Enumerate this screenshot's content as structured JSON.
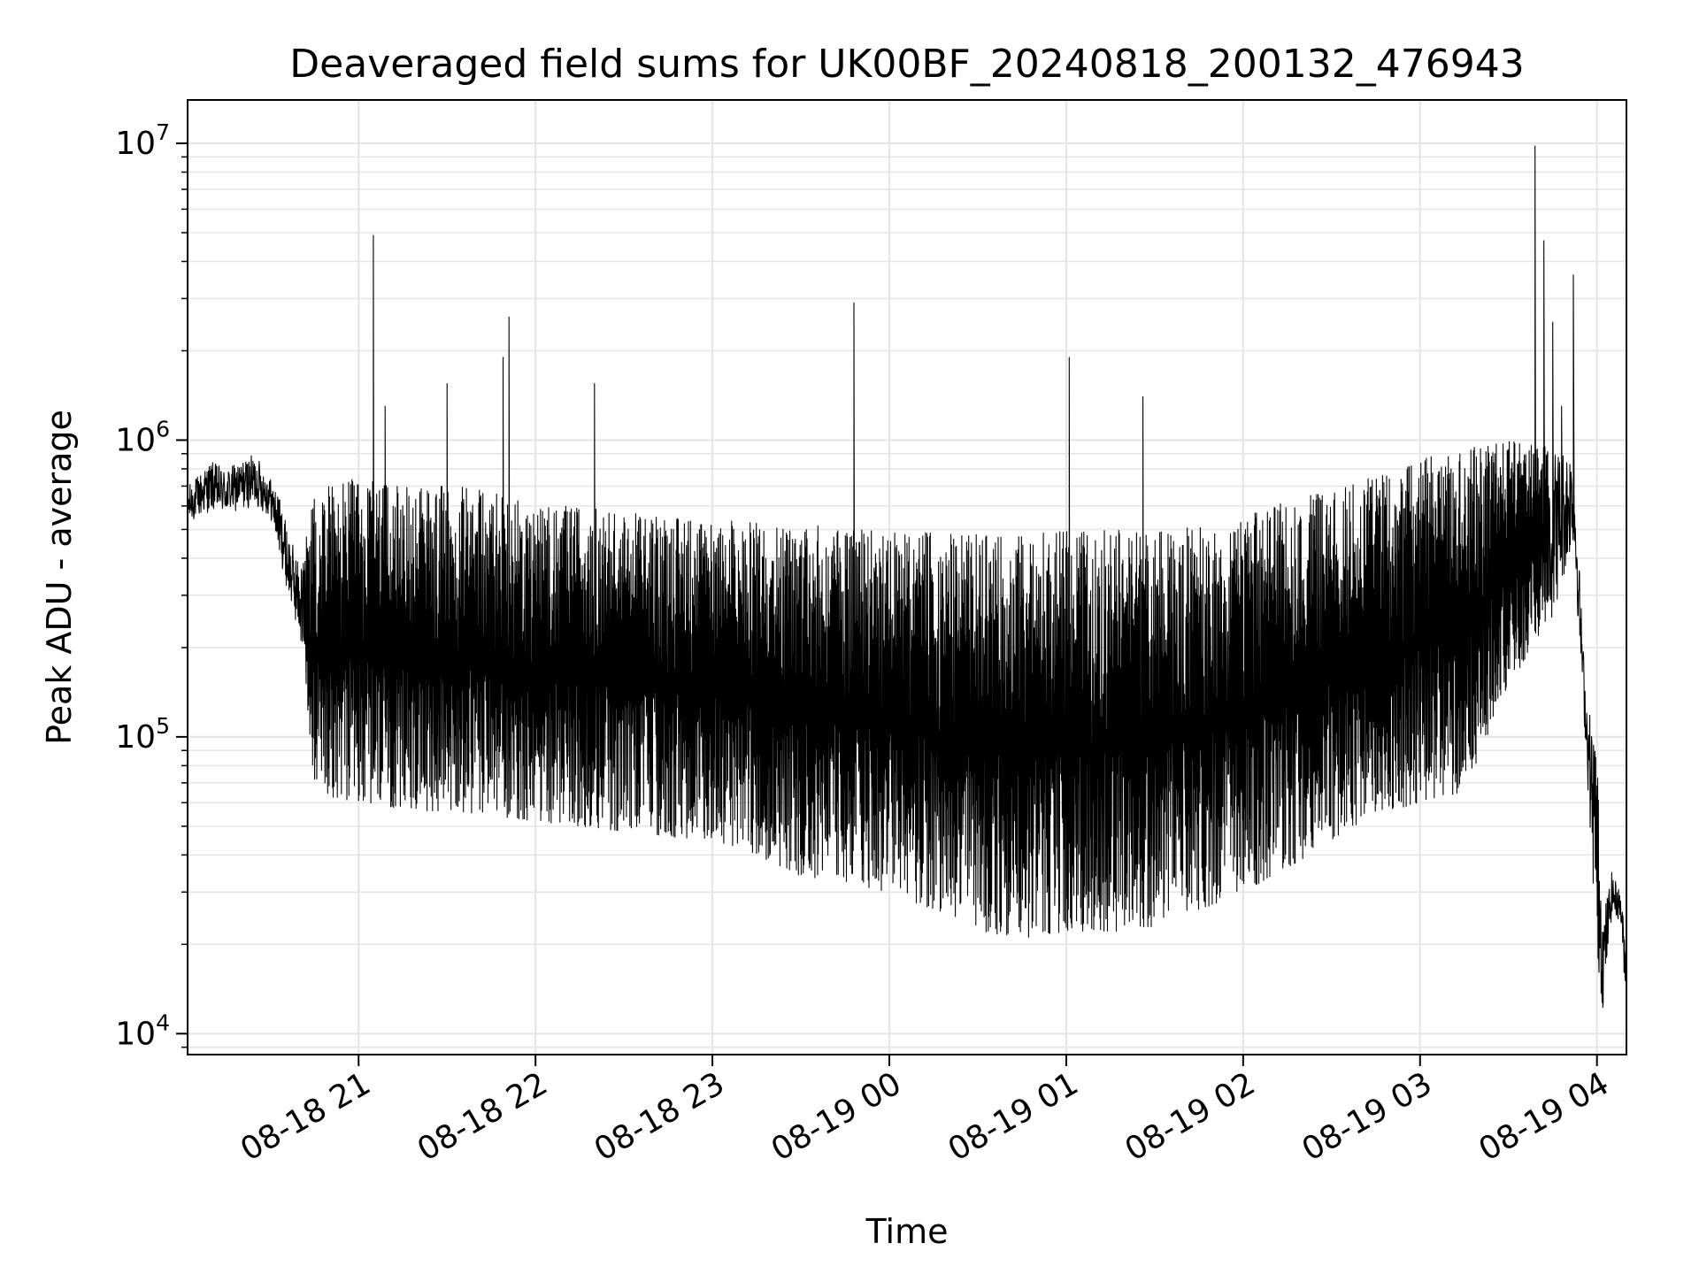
{
  "chart_data": {
    "type": "line",
    "title": "Deaveraged field sums for UK00BF_20240818_200132_476943",
    "xlabel": "Time",
    "ylabel": "Peak ADU - average",
    "yscale": "log",
    "ylim": [
      8500,
      14000000
    ],
    "xlim": [
      "2024-08-18 20:02:00",
      "2024-08-19 04:10:00"
    ],
    "x_ticks": [
      {
        "time": "2024-08-18 21:00",
        "label": "08-18 21"
      },
      {
        "time": "2024-08-18 22:00",
        "label": "08-18 22"
      },
      {
        "time": "2024-08-18 23:00",
        "label": "08-18 23"
      },
      {
        "time": "2024-08-19 00:00",
        "label": "08-19 00"
      },
      {
        "time": "2024-08-19 01:00",
        "label": "08-19 01"
      },
      {
        "time": "2024-08-19 02:00",
        "label": "08-19 02"
      },
      {
        "time": "2024-08-19 03:00",
        "label": "08-19 03"
      },
      {
        "time": "2024-08-19 04:00",
        "label": "08-19 04"
      }
    ],
    "y_ticks": [
      {
        "value": 10000,
        "base": "10",
        "exp": "4"
      },
      {
        "value": 100000,
        "base": "10",
        "exp": "5"
      },
      {
        "value": 1000000,
        "base": "10",
        "exp": "6"
      },
      {
        "value": 10000000,
        "base": "10",
        "exp": "7"
      }
    ],
    "grid": true,
    "line_color": "#000000",
    "grid_color": "#e6e6e6",
    "series": [
      {
        "x": [
          "2024-08-18 20:02",
          "2024-08-18 20:10",
          "2024-08-18 20:15",
          "2024-08-18 20:20",
          "2024-08-18 20:25",
          "2024-08-18 20:30",
          "2024-08-18 20:33",
          "2024-08-18 20:36",
          "2024-08-18 20:40",
          "2024-08-18 20:45",
          "2024-08-18 20:50",
          "2024-08-18 21:00",
          "2024-08-18 21:10",
          "2024-08-18 21:20",
          "2024-08-18 21:30",
          "2024-08-18 21:40",
          "2024-08-18 21:50",
          "2024-08-18 22:00",
          "2024-08-18 22:15",
          "2024-08-18 22:30",
          "2024-08-18 22:45",
          "2024-08-18 23:00",
          "2024-08-18 23:15",
          "2024-08-18 23:30",
          "2024-08-18 23:45",
          "2024-08-19 00:00",
          "2024-08-19 00:15",
          "2024-08-19 00:30",
          "2024-08-19 00:45",
          "2024-08-19 01:00",
          "2024-08-19 01:15",
          "2024-08-19 01:30",
          "2024-08-19 01:45",
          "2024-08-19 02:00",
          "2024-08-19 02:15",
          "2024-08-19 02:30",
          "2024-08-19 02:45",
          "2024-08-19 03:00",
          "2024-08-19 03:15",
          "2024-08-19 03:30",
          "2024-08-19 03:45",
          "2024-08-19 03:52",
          "2024-08-19 03:56",
          "2024-08-19 04:00",
          "2024-08-19 04:02",
          "2024-08-19 04:05",
          "2024-08-19 04:08",
          "2024-08-19 04:10"
        ],
        "high": [
          700000,
          850000,
          800000,
          850000,
          900000,
          750000,
          650000,
          500000,
          380000,
          650000,
          700000,
          750000,
          700000,
          700000,
          700000,
          700000,
          650000,
          600000,
          600000,
          580000,
          560000,
          550000,
          530000,
          520000,
          510000,
          500000,
          490000,
          480000,
          480000,
          500000,
          500000,
          500000,
          520000,
          560000,
          620000,
          680000,
          760000,
          860000,
          950000,
          1000000,
          950000,
          950000,
          150000,
          90000,
          25000,
          35000,
          30000,
          20000
        ],
        "low": [
          520000,
          580000,
          560000,
          580000,
          600000,
          550000,
          420000,
          300000,
          220000,
          70000,
          60000,
          60000,
          58000,
          56000,
          56000,
          55000,
          53000,
          52000,
          50000,
          48000,
          46000,
          45000,
          40000,
          34000,
          32000,
          30000,
          26000,
          22000,
          21000,
          22000,
          22000,
          23000,
          26000,
          30000,
          36000,
          45000,
          55000,
          60000,
          65000,
          150000,
          250000,
          450000,
          100000,
          18000,
          12000,
          25000,
          24000,
          12000
        ]
      }
    ],
    "spikes": [
      {
        "time": "2024-08-19 03:39:00",
        "value": 9800000
      },
      {
        "time": "2024-08-18 21:05:00",
        "value": 4900000
      },
      {
        "time": "2024-08-19 03:42:00",
        "value": 4700000
      },
      {
        "time": "2024-08-19 03:52:00",
        "value": 3600000
      },
      {
        "time": "2024-08-18 23:48:00",
        "value": 2900000
      },
      {
        "time": "2024-08-18 21:51:00",
        "value": 2600000
      },
      {
        "time": "2024-08-19 03:45:00",
        "value": 2500000
      },
      {
        "time": "2024-08-18 21:49:00",
        "value": 1900000
      },
      {
        "time": "2024-08-19 01:01:00",
        "value": 1900000
      },
      {
        "time": "2024-08-18 21:30:00",
        "value": 1550000
      },
      {
        "time": "2024-08-18 22:20:00",
        "value": 1550000
      },
      {
        "time": "2024-08-19 01:26:00",
        "value": 1400000
      },
      {
        "time": "2024-08-18 21:09:00",
        "value": 1300000
      },
      {
        "time": "2024-08-19 03:48:00",
        "value": 1300000
      }
    ]
  }
}
